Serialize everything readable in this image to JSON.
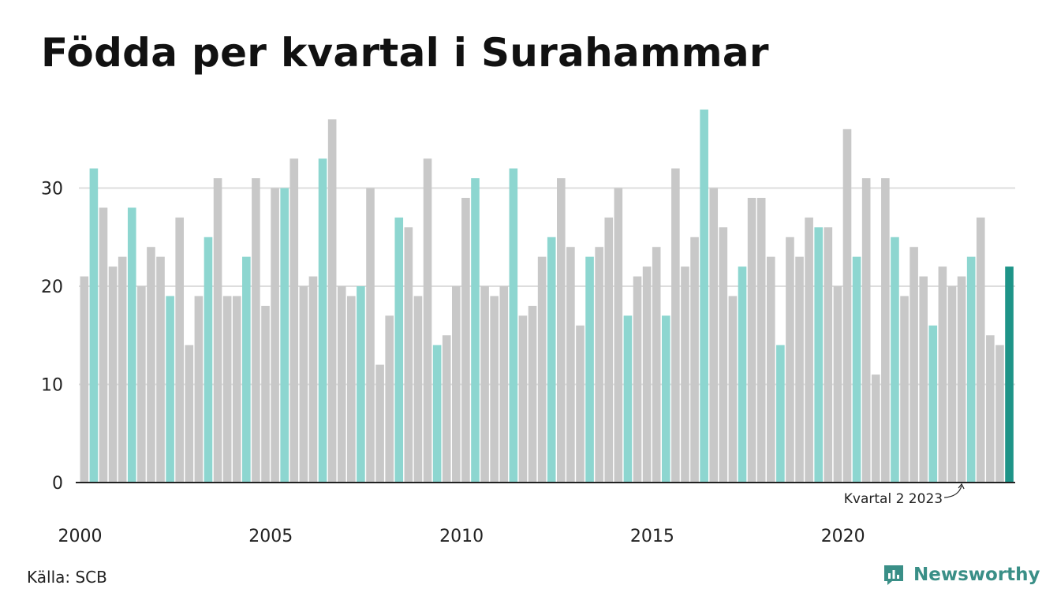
{
  "title": "Födda per kvartal i Surahammar",
  "source": "Källa: SCB",
  "brand": "Newsworthy",
  "colors": {
    "bar_default": "#c8c8c8",
    "bar_highlight": "#8dd6d0",
    "bar_latest": "#1e9488",
    "grid": "#dddddd",
    "axis": "#222222",
    "brand": "#3a8f87"
  },
  "chart_data": {
    "type": "bar",
    "grid": true,
    "ylim": [
      0,
      38
    ],
    "yticks": [
      0,
      10,
      20,
      30
    ],
    "xtick_labels": [
      "2000",
      "2005",
      "2010",
      "2015",
      "2020"
    ],
    "annotation": "Kvartal 2 2023",
    "highlight_quarter": 2,
    "start_year": 2000,
    "values": [
      21,
      32,
      28,
      22,
      23,
      28,
      20,
      24,
      23,
      19,
      27,
      14,
      19,
      25,
      31,
      19,
      19,
      23,
      31,
      18,
      30,
      30,
      33,
      20,
      21,
      33,
      37,
      20,
      19,
      20,
      30,
      12,
      17,
      27,
      26,
      19,
      33,
      14,
      15,
      20,
      29,
      31,
      20,
      19,
      20,
      32,
      17,
      18,
      23,
      25,
      31,
      24,
      16,
      23,
      24,
      27,
      30,
      17,
      21,
      22,
      24,
      17,
      32,
      22,
      25,
      38,
      30,
      26,
      19,
      22,
      29,
      29,
      23,
      14,
      25,
      23,
      27,
      26,
      26,
      20,
      36,
      23,
      31,
      11,
      31,
      25,
      19,
      24,
      21,
      16,
      22,
      20,
      21,
      23,
      27,
      15,
      14,
      22
    ]
  }
}
